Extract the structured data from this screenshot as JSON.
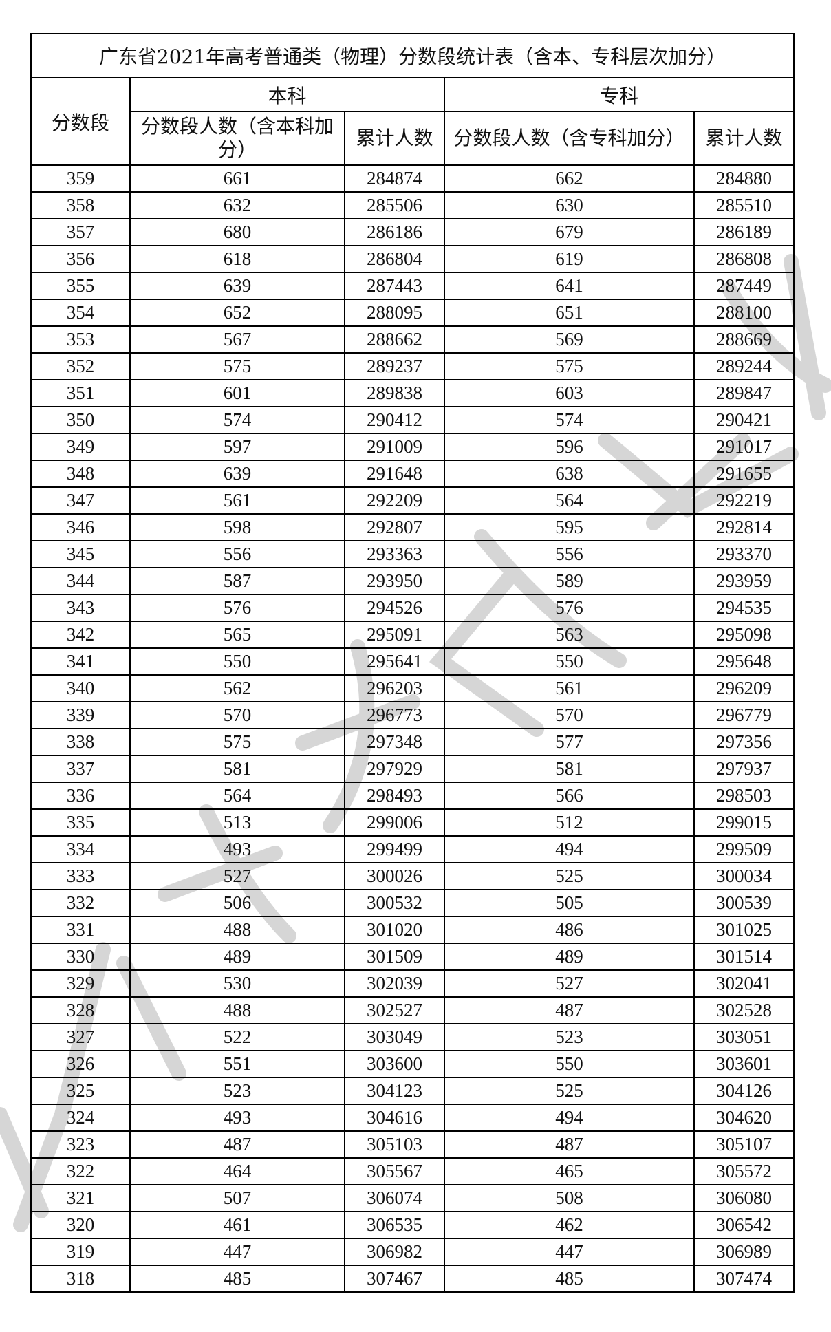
{
  "title": "广东省2021年高考普通类（物理）分数段统计表（含本、专科层次加分）",
  "headers": {
    "score": "分数段",
    "benke": "本科",
    "zhuanke": "专科",
    "benke_count": "分数段人数（含本科加分）",
    "benke_cum": "累计人数",
    "zhuanke_count": "分数段人数（含专科加分）",
    "zhuanke_cum": "累计人数"
  },
  "rows": [
    [
      "359",
      "661",
      "284874",
      "662",
      "284880"
    ],
    [
      "358",
      "632",
      "285506",
      "630",
      "285510"
    ],
    [
      "357",
      "680",
      "286186",
      "679",
      "286189"
    ],
    [
      "356",
      "618",
      "286804",
      "619",
      "286808"
    ],
    [
      "355",
      "639",
      "287443",
      "641",
      "287449"
    ],
    [
      "354",
      "652",
      "288095",
      "651",
      "288100"
    ],
    [
      "353",
      "567",
      "288662",
      "569",
      "288669"
    ],
    [
      "352",
      "575",
      "289237",
      "575",
      "289244"
    ],
    [
      "351",
      "601",
      "289838",
      "603",
      "289847"
    ],
    [
      "350",
      "574",
      "290412",
      "574",
      "290421"
    ],
    [
      "349",
      "597",
      "291009",
      "596",
      "291017"
    ],
    [
      "348",
      "639",
      "291648",
      "638",
      "291655"
    ],
    [
      "347",
      "561",
      "292209",
      "564",
      "292219"
    ],
    [
      "346",
      "598",
      "292807",
      "595",
      "292814"
    ],
    [
      "345",
      "556",
      "293363",
      "556",
      "293370"
    ],
    [
      "344",
      "587",
      "293950",
      "589",
      "293959"
    ],
    [
      "343",
      "576",
      "294526",
      "576",
      "294535"
    ],
    [
      "342",
      "565",
      "295091",
      "563",
      "295098"
    ],
    [
      "341",
      "550",
      "295641",
      "550",
      "295648"
    ],
    [
      "340",
      "562",
      "296203",
      "561",
      "296209"
    ],
    [
      "339",
      "570",
      "296773",
      "570",
      "296779"
    ],
    [
      "338",
      "575",
      "297348",
      "577",
      "297356"
    ],
    [
      "337",
      "581",
      "297929",
      "581",
      "297937"
    ],
    [
      "336",
      "564",
      "298493",
      "566",
      "298503"
    ],
    [
      "335",
      "513",
      "299006",
      "512",
      "299015"
    ],
    [
      "334",
      "493",
      "299499",
      "494",
      "299509"
    ],
    [
      "333",
      "527",
      "300026",
      "525",
      "300034"
    ],
    [
      "332",
      "506",
      "300532",
      "505",
      "300539"
    ],
    [
      "331",
      "488",
      "301020",
      "486",
      "301025"
    ],
    [
      "330",
      "489",
      "301509",
      "489",
      "301514"
    ],
    [
      "329",
      "530",
      "302039",
      "527",
      "302041"
    ],
    [
      "328",
      "488",
      "302527",
      "487",
      "302528"
    ],
    [
      "327",
      "522",
      "303049",
      "523",
      "303051"
    ],
    [
      "326",
      "551",
      "303600",
      "550",
      "303601"
    ],
    [
      "325",
      "523",
      "304123",
      "525",
      "304126"
    ],
    [
      "324",
      "493",
      "304616",
      "494",
      "304620"
    ],
    [
      "323",
      "487",
      "305103",
      "487",
      "305107"
    ],
    [
      "322",
      "464",
      "305567",
      "465",
      "305572"
    ],
    [
      "321",
      "507",
      "306074",
      "508",
      "306080"
    ],
    [
      "320",
      "461",
      "306535",
      "462",
      "306542"
    ],
    [
      "319",
      "447",
      "306982",
      "447",
      "306989"
    ],
    [
      "318",
      "485",
      "307467",
      "485",
      "307474"
    ]
  ],
  "watermark_color": "#c8c8c8"
}
